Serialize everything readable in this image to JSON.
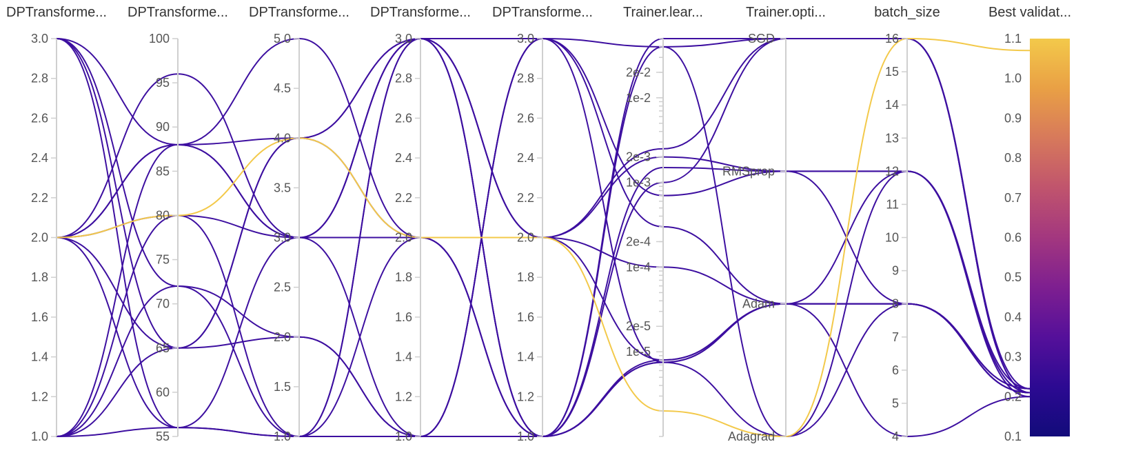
{
  "chart_data": {
    "type": "parallel_coordinates",
    "axes": [
      {
        "label": "DPTransforme...",
        "scale": "linear",
        "range": [
          1.0,
          3.0
        ],
        "ticks": [
          "3.0",
          "2.8",
          "2.6",
          "2.4",
          "2.2",
          "2.0",
          "1.8",
          "1.6",
          "1.4",
          "1.2",
          "1.0"
        ]
      },
      {
        "label": "DPTransforme...",
        "scale": "linear",
        "range": [
          55,
          100
        ],
        "ticks": [
          "100",
          "95",
          "90",
          "85",
          "80",
          "75",
          "70",
          "65",
          "60",
          "55"
        ]
      },
      {
        "label": "DPTransforme...",
        "scale": "linear",
        "range": [
          1.0,
          5.0
        ],
        "ticks": [
          "5.0",
          "4.5",
          "4.0",
          "3.5",
          "3.0",
          "2.5",
          "2.0",
          "1.5",
          "1.0"
        ]
      },
      {
        "label": "DPTransforme...",
        "scale": "linear",
        "range": [
          1.0,
          3.0
        ],
        "ticks": [
          "3.0",
          "2.8",
          "2.6",
          "2.4",
          "2.2",
          "2.0",
          "1.8",
          "1.6",
          "1.4",
          "1.2",
          "1.0"
        ]
      },
      {
        "label": "DPTransforme...",
        "scale": "linear",
        "range": [
          1.0,
          3.0
        ],
        "ticks": [
          "3.0",
          "2.8",
          "2.6",
          "2.4",
          "2.2",
          "2.0",
          "1.8",
          "1.6",
          "1.4",
          "1.2",
          "1.0"
        ]
      },
      {
        "label": "Trainer.lear...",
        "scale": "log",
        "range": [
          1e-06,
          0.05
        ],
        "ticks": [
          "2e-2",
          "1e-2",
          "2e-3",
          "1e-3",
          "2e-4",
          "1e-4",
          "2e-5",
          "1e-5"
        ]
      },
      {
        "label": "Trainer.opti...",
        "scale": "categorical",
        "categories": [
          "SGD",
          "RMSprop",
          "Adam",
          "Adagrad"
        ]
      },
      {
        "label": "batch_size",
        "scale": "linear",
        "range": [
          4,
          16
        ],
        "ticks": [
          "16",
          "15",
          "14",
          "13",
          "12",
          "11",
          "10",
          "9",
          "8",
          "7",
          "6",
          "5",
          "4"
        ]
      },
      {
        "label": "Best validat...",
        "scale": "linear",
        "range": [
          0.1,
          1.1
        ],
        "ticks": [
          "1.1",
          "1.0",
          "0.9",
          "0.8",
          "0.7",
          "0.6",
          "0.5",
          "0.4",
          "0.3",
          "0.2",
          "0.1"
        ],
        "colorbar": true
      }
    ],
    "colormap": [
      "#0d0887",
      "#6a00a8",
      "#b12a90",
      "#e16462",
      "#fca636",
      "#f0f921"
    ],
    "colorbar_stops": [
      "#f3c94a",
      "#e9a045",
      "#d7795b",
      "#c0546d",
      "#a3377f",
      "#7e1f90",
      "#55109a",
      "#2c0a92",
      "#120b7a"
    ],
    "runs": [
      {
        "values": [
          2.0,
          80,
          4.0,
          2.0,
          2.0,
          2e-06,
          "Adagrad",
          16,
          1.07
        ]
      },
      {
        "values": [
          3.0,
          88,
          3.0,
          3.0,
          2.0,
          8e-06,
          "Adam",
          8,
          0.21
        ]
      },
      {
        "values": [
          3.0,
          65,
          2.0,
          1.0,
          3.0,
          0.04,
          "SGD",
          16,
          0.21
        ]
      },
      {
        "values": [
          3.0,
          56,
          1.0,
          3.0,
          1.0,
          7.5e-06,
          "Adam",
          8,
          0.21
        ]
      },
      {
        "values": [
          2.0,
          88,
          5.0,
          2.0,
          2.0,
          0.002,
          "RMSprop",
          12,
          0.22
        ]
      },
      {
        "values": [
          2.0,
          80,
          1.0,
          3.0,
          1.0,
          0.001,
          "SGD",
          16,
          0.21
        ]
      },
      {
        "values": [
          2.0,
          96,
          3.0,
          1.0,
          3.0,
          0.0003,
          "Adam",
          8,
          0.22
        ]
      },
      {
        "values": [
          1.0,
          88,
          4.0,
          3.0,
          1.0,
          0.0015,
          "RMSprop",
          12,
          0.21
        ]
      },
      {
        "values": [
          1.0,
          56,
          3.0,
          2.0,
          1.0,
          0.04,
          "Adagrad",
          8,
          0.21
        ]
      },
      {
        "values": [
          2.0,
          65,
          4.0,
          3.0,
          2.0,
          0.0001,
          "Adam",
          4,
          0.2
        ]
      },
      {
        "values": [
          1.0,
          72,
          2.0,
          1.0,
          1.0,
          8e-06,
          "Adam",
          12,
          0.2
        ]
      },
      {
        "values": [
          2.0,
          56,
          1.0,
          1.0,
          3.0,
          7.5e-06,
          "Adam",
          8,
          0.21
        ]
      },
      {
        "values": [
          1.0,
          80,
          3.0,
          3.0,
          2.0,
          0.0025,
          "SGD",
          16,
          0.22
        ]
      },
      {
        "values": [
          3.0,
          72,
          1.0,
          2.0,
          1.0,
          0.05,
          "SGD",
          16,
          0.21
        ]
      },
      {
        "values": [
          2.0,
          88,
          3.0,
          3.0,
          3.0,
          0.0007,
          "RMSprop",
          8,
          0.22
        ]
      },
      {
        "values": [
          1.0,
          65,
          4.0,
          2.0,
          1.0,
          7.5e-06,
          "Adagrad",
          12,
          0.21
        ]
      }
    ]
  }
}
